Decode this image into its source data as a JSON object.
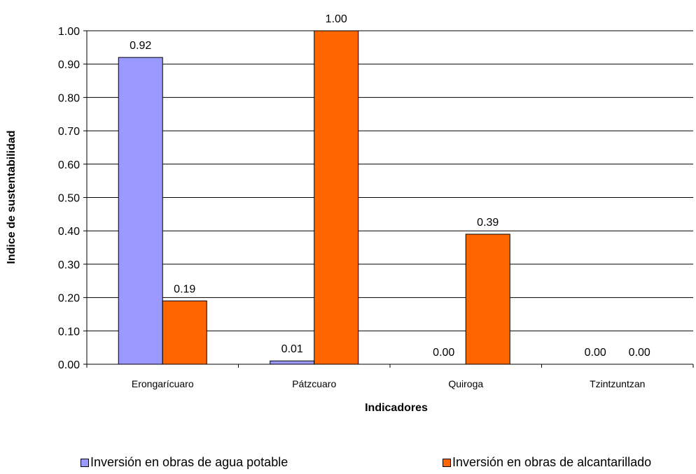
{
  "chart_data": {
    "type": "bar",
    "title": "",
    "xlabel": "Indicadores",
    "ylabel": "Indice de sustentabilidad",
    "ylim": [
      0,
      1.0
    ],
    "yticks": [
      "0.00",
      "0.10",
      "0.20",
      "0.30",
      "0.40",
      "0.50",
      "0.60",
      "0.70",
      "0.80",
      "0.90",
      "1.00"
    ],
    "grid": true,
    "legend_position": "bottom",
    "categories": [
      "Erongarícuaro",
      "Pátzcuaro",
      "Quiroga",
      "Tzintzuntzan"
    ],
    "series": [
      {
        "name": "Inversión en obras de agua potable",
        "color": "#9999ff",
        "values": [
          0.92,
          0.01,
          0.0,
          0.0
        ],
        "labels": [
          "0.92",
          "0.01",
          "0.00",
          "0.00"
        ]
      },
      {
        "name": "Inversión en obras de alcantarillado",
        "color": "#ff6600",
        "values": [
          0.19,
          1.0,
          0.39,
          0.0
        ],
        "labels": [
          "0.19",
          "1.00",
          "0.39",
          "0.00"
        ]
      }
    ]
  }
}
